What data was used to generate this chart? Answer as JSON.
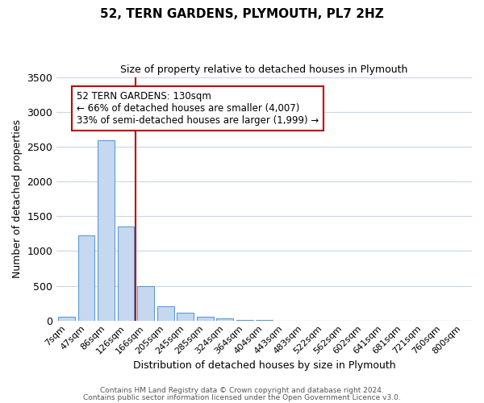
{
  "title": "52, TERN GARDENS, PLYMOUTH, PL7 2HZ",
  "subtitle": "Size of property relative to detached houses in Plymouth",
  "xlabel": "Distribution of detached houses by size in Plymouth",
  "ylabel": "Number of detached properties",
  "bar_labels": [
    "7sqm",
    "47sqm",
    "86sqm",
    "126sqm",
    "166sqm",
    "205sqm",
    "245sqm",
    "285sqm",
    "324sqm",
    "364sqm",
    "404sqm",
    "443sqm",
    "483sqm",
    "522sqm",
    "562sqm",
    "602sqm",
    "641sqm",
    "681sqm",
    "721sqm",
    "760sqm",
    "800sqm"
  ],
  "bar_values": [
    50,
    1230,
    2590,
    1350,
    500,
    200,
    110,
    50,
    30,
    5,
    3,
    2,
    2,
    0,
    0,
    0,
    0,
    0,
    0,
    0,
    0
  ],
  "bar_color": "#c5d8f0",
  "bar_edge_color": "#5b9bd5",
  "vline_x": 3.5,
  "vline_color": "#c00000",
  "annotation_text": "52 TERN GARDENS: 130sqm\n← 66% of detached houses are smaller (4,007)\n33% of semi-detached houses are larger (1,999) →",
  "annotation_box_color": "#ffffff",
  "annotation_box_edge_color": "#c00000",
  "ylim": [
    0,
    3500
  ],
  "yticks": [
    0,
    500,
    1000,
    1500,
    2000,
    2500,
    3000,
    3500
  ],
  "footer1": "Contains HM Land Registry data © Crown copyright and database right 2024.",
  "footer2": "Contains public sector information licensed under the Open Government Licence v3.0.",
  "background_color": "#ffffff",
  "grid_color": "#c8d8e8",
  "title_fontsize": 11,
  "subtitle_fontsize": 9,
  "annotation_fontsize": 8.5,
  "xlabel_fontsize": 9,
  "ylabel_fontsize": 9,
  "tick_fontsize": 8,
  "footer_fontsize": 6.5
}
